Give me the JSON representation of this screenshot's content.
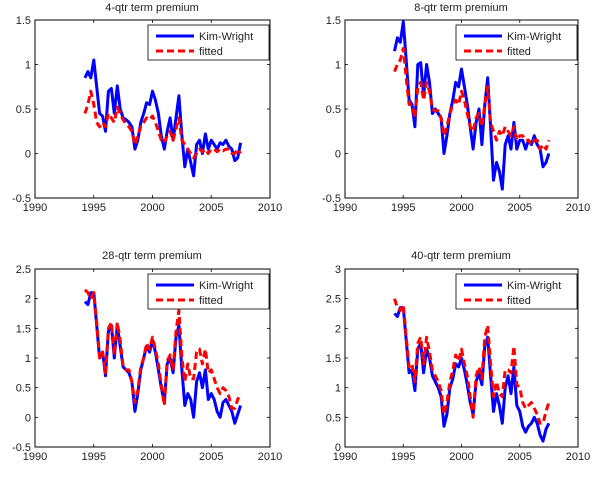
{
  "chart_data": [
    {
      "type": "line",
      "title": "4-qtr term premium",
      "xlabel": "",
      "ylabel": "",
      "xlim": [
        1990,
        2010
      ],
      "ylim": [
        -0.5,
        1.5
      ],
      "xticks": [
        "1990",
        "1995",
        "2000",
        "2005",
        "2010"
      ],
      "yticks": [
        "-0.5",
        "0",
        "0.5",
        "1",
        "1.5"
      ],
      "xtick_values": [
        1990,
        1995,
        2000,
        2005,
        2010
      ],
      "ytick_values": [
        -0.5,
        0,
        0.5,
        1,
        1.5
      ],
      "legend": {
        "position": "top-right",
        "entries": [
          "Kim-Wright",
          "fitted"
        ]
      },
      "x": [
        1994.25,
        1994.5,
        1994.75,
        1995.0,
        1995.25,
        1995.5,
        1995.75,
        1996.0,
        1996.25,
        1996.5,
        1996.75,
        1997.0,
        1997.25,
        1997.5,
        1997.75,
        1998.0,
        1998.25,
        1998.5,
        1998.75,
        1999.0,
        1999.25,
        1999.5,
        1999.75,
        2000.0,
        2000.25,
        2000.5,
        2000.75,
        2001.0,
        2001.25,
        2001.5,
        2001.75,
        2002.0,
        2002.25,
        2002.5,
        2002.75,
        2003.0,
        2003.25,
        2003.5,
        2003.75,
        2004.0,
        2004.25,
        2004.5,
        2004.75,
        2005.0,
        2005.25,
        2005.5,
        2005.75,
        2006.0,
        2006.25,
        2006.5,
        2006.75,
        2007.0,
        2007.25,
        2007.5
      ],
      "series": [
        {
          "name": "Kim-Wright",
          "color": "#0000ff",
          "style": "solid",
          "values": [
            0.85,
            0.92,
            0.85,
            1.05,
            0.75,
            0.45,
            0.42,
            0.25,
            0.7,
            0.73,
            0.45,
            0.76,
            0.5,
            0.4,
            0.38,
            0.35,
            0.3,
            0.05,
            0.15,
            0.35,
            0.45,
            0.57,
            0.55,
            0.7,
            0.6,
            0.45,
            0.2,
            0.05,
            0.25,
            0.4,
            0.15,
            0.4,
            0.65,
            0.2,
            -0.15,
            0.05,
            -0.1,
            -0.25,
            0.1,
            0.15,
            0.0,
            0.22,
            0.05,
            0.15,
            0.1,
            0.05,
            0.12,
            0.1,
            0.15,
            0.08,
            0.05,
            -0.08,
            -0.05,
            0.12
          ]
        },
        {
          "name": "fitted",
          "color": "#ff0000",
          "style": "dashed",
          "values": [
            0.45,
            0.55,
            0.7,
            0.55,
            0.35,
            0.3,
            0.35,
            0.3,
            0.45,
            0.4,
            0.35,
            0.52,
            0.45,
            0.38,
            0.33,
            0.3,
            0.25,
            0.1,
            0.2,
            0.3,
            0.35,
            0.4,
            0.38,
            0.42,
            0.35,
            0.25,
            0.15,
            0.12,
            0.2,
            0.25,
            0.15,
            0.28,
            0.4,
            0.15,
            0.1,
            0.05,
            0.0,
            -0.05,
            0.0,
            0.05,
            0.02,
            0.05,
            0.0,
            0.05,
            0.05,
            0.02,
            0.05,
            0.03,
            0.05,
            0.05,
            0.0,
            0.0,
            0.05,
            0.0
          ]
        }
      ]
    },
    {
      "type": "line",
      "title": "8-qtr term premium",
      "xlabel": "",
      "ylabel": "",
      "xlim": [
        1990,
        2010
      ],
      "ylim": [
        -0.5,
        1.5
      ],
      "xticks": [
        "1990",
        "1995",
        "2000",
        "2005",
        "2010"
      ],
      "yticks": [
        "-0.5",
        "0",
        "0.5",
        "1",
        "1.5"
      ],
      "xtick_values": [
        1990,
        1995,
        2000,
        2005,
        2010
      ],
      "ytick_values": [
        -0.5,
        0,
        0.5,
        1,
        1.5
      ],
      "legend": {
        "position": "top-right",
        "entries": [
          "Kim-Wright",
          "fitted"
        ]
      },
      "x": [
        1994.25,
        1994.5,
        1994.75,
        1995.0,
        1995.25,
        1995.5,
        1995.75,
        1996.0,
        1996.25,
        1996.5,
        1996.75,
        1997.0,
        1997.25,
        1997.5,
        1997.75,
        1998.0,
        1998.25,
        1998.5,
        1998.75,
        1999.0,
        1999.25,
        1999.5,
        1999.75,
        2000.0,
        2000.25,
        2000.5,
        2000.75,
        2001.0,
        2001.25,
        2001.5,
        2001.75,
        2002.0,
        2002.25,
        2002.5,
        2002.75,
        2003.0,
        2003.25,
        2003.5,
        2003.75,
        2004.0,
        2004.25,
        2004.5,
        2004.75,
        2005.0,
        2005.25,
        2005.5,
        2005.75,
        2006.0,
        2006.25,
        2006.5,
        2006.75,
        2007.0,
        2007.25,
        2007.5
      ],
      "series": [
        {
          "name": "Kim-Wright",
          "color": "#0000ff",
          "style": "solid",
          "values": [
            1.15,
            1.3,
            1.25,
            1.48,
            1.05,
            0.6,
            0.55,
            0.3,
            1.0,
            1.02,
            0.65,
            1.0,
            0.8,
            0.45,
            0.5,
            0.45,
            0.4,
            0.0,
            0.2,
            0.45,
            0.6,
            0.8,
            0.75,
            0.95,
            0.75,
            0.55,
            0.3,
            0.05,
            0.35,
            0.5,
            0.1,
            0.55,
            0.85,
            0.3,
            -0.3,
            -0.1,
            -0.2,
            -0.4,
            0.1,
            0.2,
            0.05,
            0.35,
            0.05,
            0.15,
            0.15,
            0.05,
            0.15,
            0.1,
            0.2,
            0.1,
            0.05,
            -0.15,
            -0.1,
            0.0
          ]
        },
        {
          "name": "fitted",
          "color": "#ff0000",
          "style": "dashed",
          "values": [
            0.92,
            1.0,
            1.05,
            1.18,
            0.85,
            0.55,
            0.55,
            0.4,
            0.75,
            0.8,
            0.6,
            0.8,
            0.7,
            0.5,
            0.48,
            0.48,
            0.4,
            0.2,
            0.3,
            0.45,
            0.55,
            0.6,
            0.55,
            0.7,
            0.6,
            0.45,
            0.3,
            0.25,
            0.4,
            0.45,
            0.3,
            0.55,
            0.75,
            0.35,
            0.25,
            0.15,
            0.25,
            0.2,
            0.3,
            0.25,
            0.2,
            0.3,
            0.15,
            0.2,
            0.2,
            0.15,
            0.15,
            0.1,
            0.15,
            0.15,
            0.05,
            0.1,
            0.05,
            0.15
          ]
        }
      ]
    },
    {
      "type": "line",
      "title": "28-qtr term premium",
      "xlabel": "",
      "ylabel": "",
      "xlim": [
        1990,
        2010
      ],
      "ylim": [
        -0.5,
        2.5
      ],
      "xticks": [
        "1990",
        "1995",
        "2000",
        "2005",
        "2010"
      ],
      "yticks": [
        "-0.5",
        "0",
        "0.5",
        "1",
        "1.5",
        "2",
        "2.5"
      ],
      "xtick_values": [
        1990,
        1995,
        2000,
        2005,
        2010
      ],
      "ytick_values": [
        -0.5,
        0,
        0.5,
        1,
        1.5,
        2,
        2.5
      ],
      "legend": {
        "position": "top-right",
        "entries": [
          "Kim-Wright",
          "fitted"
        ]
      },
      "x": [
        1994.25,
        1994.5,
        1994.75,
        1995.0,
        1995.25,
        1995.5,
        1995.75,
        1996.0,
        1996.25,
        1996.5,
        1996.75,
        1997.0,
        1997.25,
        1997.5,
        1997.75,
        1998.0,
        1998.25,
        1998.5,
        1998.75,
        1999.0,
        1999.25,
        1999.5,
        1999.75,
        2000.0,
        2000.25,
        2000.5,
        2000.75,
        2001.0,
        2001.25,
        2001.5,
        2001.75,
        2002.0,
        2002.25,
        2002.5,
        2002.75,
        2003.0,
        2003.25,
        2003.5,
        2003.75,
        2004.0,
        2004.25,
        2004.5,
        2004.75,
        2005.0,
        2005.25,
        2005.5,
        2005.75,
        2006.0,
        2006.25,
        2006.5,
        2006.75,
        2007.0,
        2007.25,
        2007.5
      ],
      "series": [
        {
          "name": "Kim-Wright",
          "color": "#0000ff",
          "style": "solid",
          "values": [
            1.95,
            1.9,
            2.1,
            2.1,
            1.55,
            1.0,
            1.1,
            0.7,
            1.45,
            1.55,
            1.0,
            1.55,
            1.2,
            0.85,
            0.8,
            0.75,
            0.6,
            0.1,
            0.4,
            0.8,
            1.0,
            1.2,
            1.1,
            1.3,
            1.1,
            0.8,
            0.5,
            0.25,
            0.9,
            1.0,
            0.75,
            1.35,
            1.55,
            0.8,
            0.2,
            0.4,
            0.3,
            0.0,
            0.6,
            0.75,
            0.5,
            0.8,
            0.3,
            0.4,
            0.3,
            0.1,
            0.0,
            0.25,
            0.3,
            0.2,
            0.1,
            -0.1,
            0.05,
            0.2
          ]
        },
        {
          "name": "fitted",
          "color": "#ff0000",
          "style": "dashed",
          "values": [
            2.15,
            2.1,
            2.0,
            2.1,
            1.6,
            1.0,
            1.1,
            0.75,
            1.5,
            1.6,
            1.05,
            1.6,
            1.3,
            0.85,
            0.8,
            0.8,
            0.6,
            0.25,
            0.45,
            0.85,
            1.0,
            1.25,
            1.15,
            1.35,
            1.15,
            0.9,
            0.55,
            0.2,
            0.95,
            1.05,
            0.8,
            1.45,
            1.8,
            1.0,
            0.6,
            0.9,
            0.65,
            0.65,
            1.1,
            1.15,
            0.9,
            1.15,
            0.75,
            0.8,
            0.65,
            0.5,
            0.4,
            0.5,
            0.45,
            0.35,
            0.15,
            0.15,
            0.3,
            0.4
          ]
        }
      ]
    },
    {
      "type": "line",
      "title": "40-qtr term premium",
      "xlabel": "",
      "ylabel": "",
      "xlim": [
        1990,
        2010
      ],
      "ylim": [
        0,
        3
      ],
      "xticks": [
        "1990",
        "1995",
        "2000",
        "2005",
        "2010"
      ],
      "yticks": [
        "0",
        "0.5",
        "1",
        "1.5",
        "2",
        "2.5",
        "3"
      ],
      "xtick_values": [
        1990,
        1995,
        2000,
        2005,
        2010
      ],
      "ytick_values": [
        0,
        0.5,
        1,
        1.5,
        2,
        2.5,
        3
      ],
      "legend": {
        "position": "top-right",
        "entries": [
          "Kim-Wright",
          "fitted"
        ]
      },
      "x": [
        1994.25,
        1994.5,
        1994.75,
        1995.0,
        1995.25,
        1995.5,
        1995.75,
        1996.0,
        1996.25,
        1996.5,
        1996.75,
        1997.0,
        1997.25,
        1997.5,
        1997.75,
        1998.0,
        1998.25,
        1998.5,
        1998.75,
        1999.0,
        1999.25,
        1999.5,
        1999.75,
        2000.0,
        2000.25,
        2000.5,
        2000.75,
        2001.0,
        2001.25,
        2001.5,
        2001.75,
        2002.0,
        2002.25,
        2002.5,
        2002.75,
        2003.0,
        2003.25,
        2003.5,
        2003.75,
        2004.0,
        2004.25,
        2004.5,
        2004.75,
        2005.0,
        2005.25,
        2005.5,
        2005.75,
        2006.0,
        2006.25,
        2006.5,
        2006.75,
        2007.0,
        2007.25,
        2007.5
      ],
      "series": [
        {
          "name": "Kim-Wright",
          "color": "#0000ff",
          "style": "solid",
          "values": [
            2.25,
            2.2,
            2.35,
            2.35,
            1.8,
            1.25,
            1.3,
            0.95,
            1.65,
            1.75,
            1.25,
            1.65,
            1.5,
            1.2,
            1.1,
            1.0,
            0.85,
            0.35,
            0.55,
            1.0,
            1.15,
            1.4,
            1.35,
            1.5,
            1.3,
            1.05,
            0.75,
            0.55,
            1.1,
            1.25,
            1.05,
            1.7,
            1.85,
            1.2,
            0.6,
            0.9,
            0.7,
            0.4,
            1.0,
            1.2,
            0.9,
            1.35,
            0.7,
            0.6,
            0.35,
            0.25,
            0.35,
            0.4,
            0.5,
            0.4,
            0.2,
            0.1,
            0.3,
            0.4
          ]
        },
        {
          "name": "fitted",
          "color": "#ff0000",
          "style": "dashed",
          "values": [
            2.5,
            2.35,
            2.3,
            2.4,
            1.85,
            1.35,
            1.4,
            1.1,
            1.75,
            1.85,
            1.4,
            1.85,
            1.6,
            1.3,
            1.2,
            1.1,
            0.95,
            0.55,
            0.75,
            1.1,
            1.3,
            1.55,
            1.45,
            1.65,
            1.4,
            1.2,
            0.85,
            0.5,
            1.2,
            1.35,
            1.15,
            1.85,
            2.05,
            1.4,
            0.85,
            1.1,
            0.9,
            0.85,
            1.3,
            1.3,
            1.25,
            1.7,
            1.05,
            1.0,
            0.75,
            0.65,
            0.7,
            0.75,
            0.65,
            0.55,
            0.4,
            0.4,
            0.6,
            0.75
          ]
        }
      ]
    }
  ]
}
